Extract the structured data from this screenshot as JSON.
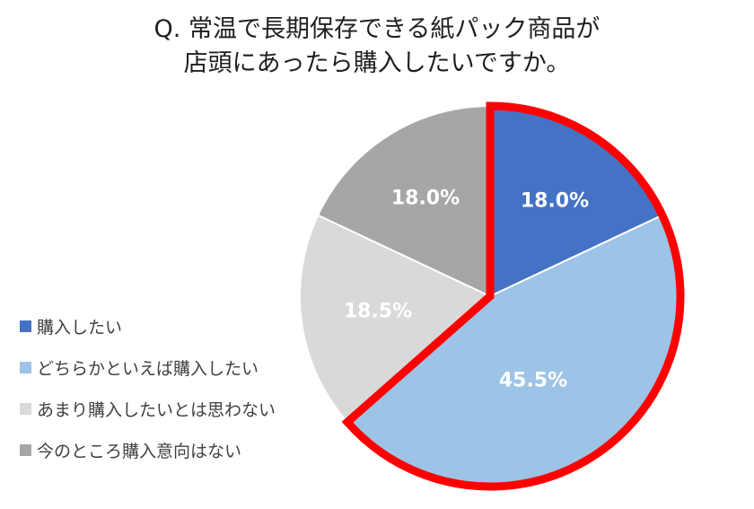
{
  "chart_data": {
    "type": "pie",
    "title_lines": [
      "Q. 常温で長期保存できる紙パック商品が",
      "店頭にあったら購入したいですか。"
    ],
    "categories": [
      "購入したい",
      "どちらかといえば購入したい",
      "あまり購入したいとは思わない",
      "今のところ購入意向はない"
    ],
    "values": [
      18.0,
      45.5,
      18.5,
      18.0
    ],
    "labels": [
      "18.0%",
      "45.5%",
      "18.5%",
      "18.0%"
    ],
    "colors": [
      "#4472C4",
      "#9DC3E6",
      "#D9D9D9",
      "#A6A6A6"
    ],
    "highlight": {
      "slices": [
        0,
        1
      ],
      "outline_color": "#FF0000"
    },
    "legend_position": "left"
  }
}
